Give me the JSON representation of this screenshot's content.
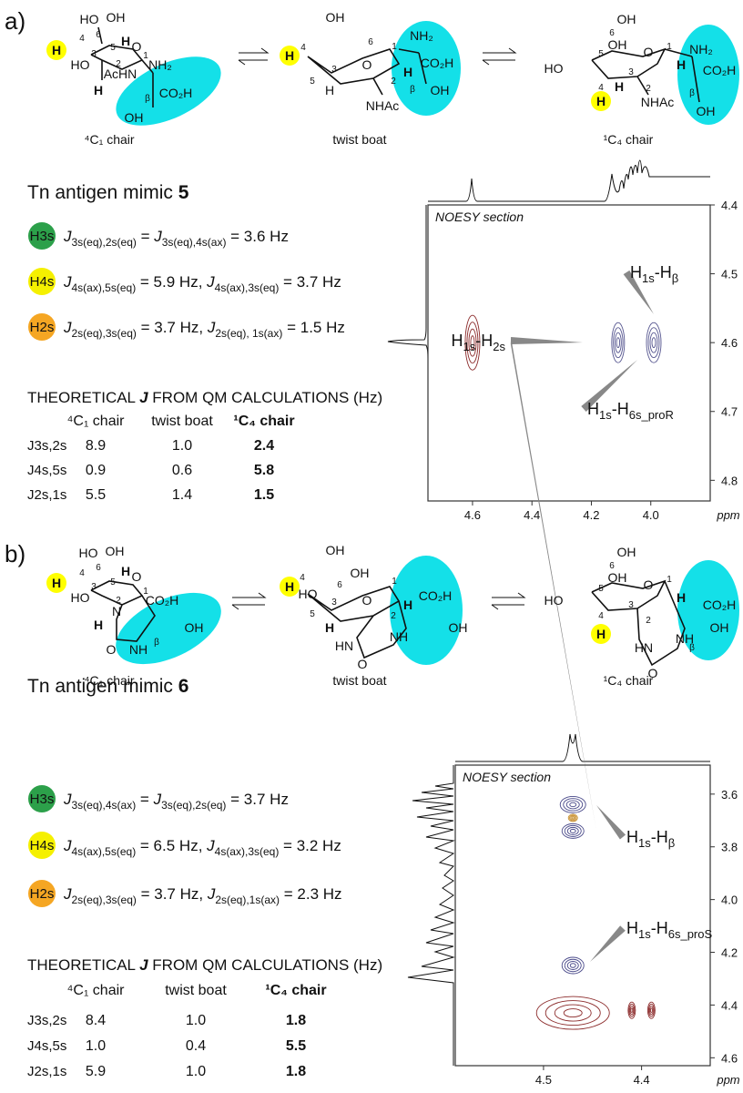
{
  "panels": [
    {
      "tag": "a)",
      "structures": [
        {
          "caption": "⁴C₁ chair",
          "labels": [
            "HO",
            "OH",
            "H",
            "4",
            "6",
            "5",
            "H",
            "O",
            "1",
            "HO",
            "3",
            "2",
            "AcHN",
            "NH₂",
            "H",
            "CO₂H",
            "β",
            "OH"
          ]
        },
        {
          "caption": "twist boat",
          "labels": [
            "OH",
            "4",
            "H",
            "6",
            "3",
            "5",
            "O",
            "1",
            "H",
            "2",
            "H",
            "NH₂",
            "CO₂H",
            "β",
            "OH",
            "NHAc"
          ]
        },
        {
          "caption": "¹C₄ chair",
          "labels": [
            "OH",
            "6",
            "OH",
            "5",
            "O",
            "1",
            "HO",
            "NH₂",
            "CO₂H",
            "H",
            "3",
            "4",
            "H",
            "2",
            "β",
            "H",
            "NHAc",
            "OH"
          ]
        }
      ],
      "title": {
        "text": "Tn antigen mimic ",
        "number": "5"
      },
      "couplings": [
        {
          "badge": [
            "H",
            "3s"
          ],
          "color": "#2ca04a",
          "equation": [
            [
              "J",
              "3s(eq),2s(eq)"
            ],
            " = ",
            [
              "J",
              "3s(eq),4s(ax)"
            ],
            " = 3.6 Hz"
          ]
        },
        {
          "badge": [
            "H",
            "4s"
          ],
          "color": "#f5f000",
          "equation": [
            [
              "J",
              "4s(ax),5s(eq)"
            ],
            " = 5.9 Hz, ",
            [
              "J",
              "4s(ax),3s(eq)"
            ],
            " = 3.7 Hz"
          ]
        },
        {
          "badge": [
            "H",
            "2s"
          ],
          "color": "#f5a623",
          "equation": [
            [
              "J",
              "2s(eq),3s(eq)"
            ],
            " = 3.7 Hz, ",
            [
              "J",
              "2s(eq), 1s(ax)"
            ],
            " = 1.5 Hz"
          ]
        }
      ],
      "table": {
        "heading": [
          "THEORETICAL ",
          "J",
          " FROM QM CALCULATIONS (Hz)"
        ],
        "columns": [
          "⁴C₁ chair",
          "twist boat",
          "¹C₄ chair"
        ],
        "rows": [
          {
            "label": [
              "J",
              "3s,2s"
            ],
            "cells": [
              "8.9",
              "1.0",
              "2.4"
            ]
          },
          {
            "label": [
              "J",
              "4s,5s"
            ],
            "cells": [
              "0.9",
              "0.6",
              "5.8"
            ]
          },
          {
            "label": [
              "J",
              "2s,1s"
            ],
            "cells": [
              "5.5",
              "1.4",
              "1.5"
            ]
          }
        ]
      },
      "noesy": {
        "title": "NOESY section",
        "xlabel": "ppm",
        "xlim": [
          4.75,
          3.8
        ],
        "ylim": [
          4.4,
          4.83
        ],
        "xticks": [
          4.6,
          4.4,
          4.2,
          {
            "value": 4,
            "label": "4.0"
          }
        ],
        "yticks": [
          4.4,
          4.5,
          4.6,
          4.7,
          4.8
        ],
        "peaks": [
          {
            "x": 4.6,
            "y": 4.6,
            "color": "#8b2a2a"
          },
          {
            "x": 4.11,
            "y": 4.6,
            "color": "#55558f"
          },
          {
            "x": 3.99,
            "y": 4.6,
            "color": "#55558f"
          }
        ],
        "annotations": [
          {
            "label": [
              [
                "H",
                "1s"
              ],
              "-",
              [
                "H",
                "2s"
              ]
            ]
          },
          {
            "label": [
              [
                "H",
                "1s"
              ],
              "-",
              [
                "H",
                "β"
              ]
            ]
          },
          {
            "label": [
              [
                "H",
                "1s"
              ],
              "-",
              [
                "H",
                "6s_proR"
              ]
            ]
          }
        ]
      }
    },
    {
      "tag": "b)",
      "structures": [
        {
          "caption": "⁴C₁ chair",
          "labels": [
            "HO",
            "OH",
            "H",
            "4",
            "6",
            "5",
            "H",
            "O",
            "1",
            "HO",
            "3",
            "2",
            "N",
            "CO₂H",
            "H",
            "OH",
            "O",
            "NH",
            "β"
          ]
        },
        {
          "caption": "twist boat",
          "labels": [
            "OH",
            "OH",
            "H",
            "4",
            "6",
            "HO",
            "3",
            "5",
            "O",
            "1",
            "2",
            "H",
            "H",
            "HN",
            "NH",
            "O",
            "CO₂H",
            "OH"
          ]
        },
        {
          "caption": "¹C₄ chair",
          "labels": [
            "OH",
            "6",
            "OH",
            "5",
            "O",
            "1",
            "HO",
            "4",
            "3",
            "2",
            "H",
            "H",
            "HN",
            "NH",
            "O",
            "CO₂H",
            "OH",
            "β"
          ]
        }
      ],
      "title": {
        "text": "Tn antigen mimic ",
        "number": "6"
      },
      "couplings": [
        {
          "badge": [
            "H",
            "3s"
          ],
          "color": "#2ca04a",
          "equation": [
            [
              "J",
              "3s(eq),4s(ax)"
            ],
            " = ",
            [
              "J",
              "3s(eq),2s(eq)"
            ],
            " = 3.7 Hz"
          ]
        },
        {
          "badge": [
            "H",
            "4s"
          ],
          "color": "#f5f000",
          "equation": [
            [
              "J",
              "4s(ax),5s(eq)"
            ],
            " = 6.5 Hz, ",
            [
              "J",
              "4s(ax),3s(eq)"
            ],
            " = 3.2 Hz"
          ]
        },
        {
          "badge": [
            "H",
            "2s"
          ],
          "color": "#f5a623",
          "equation": [
            [
              "J",
              "2s(eq),3s(eq)"
            ],
            " = 3.7 Hz, ",
            [
              "J",
              "2s(eq),1s(ax)"
            ],
            " = 2.3 Hz"
          ]
        }
      ],
      "table": {
        "heading": [
          "THEORETICAL ",
          "J",
          " FROM QM CALCULATIONS (Hz)"
        ],
        "columns": [
          "⁴C₁ chair",
          "twist boat",
          "¹C₄ chair"
        ],
        "rows": [
          {
            "label": [
              "J",
              "3s,2s"
            ],
            "cells": [
              "8.4",
              "1.0",
              "1.8"
            ]
          },
          {
            "label": [
              "J",
              "4s,5s"
            ],
            "cells": [
              "1.0",
              "0.4",
              "5.5"
            ]
          },
          {
            "label": [
              "J",
              "2s,1s"
            ],
            "cells": [
              "5.9",
              "1.0",
              "1.8"
            ]
          }
        ]
      },
      "noesy": {
        "title": "NOESY section",
        "xlabel": "ppm",
        "xlim": [
          4.59,
          4.33
        ],
        "ylim": [
          3.49,
          4.63
        ],
        "xticks": [
          4.5,
          4.4
        ],
        "yticks": [
          3.6,
          3.8,
          {
            "value": 4,
            "label": "4.0"
          },
          4.2,
          4.4,
          4.6
        ],
        "peaks": [
          {
            "x": 4.47,
            "y": 3.64,
            "color": "#4a4a8a"
          },
          {
            "x": 4.47,
            "y": 3.69,
            "color": "#c89030"
          },
          {
            "x": 4.47,
            "y": 3.74,
            "color": "#4a4a8a"
          },
          {
            "x": 4.47,
            "y": 4.25,
            "color": "#4a4a8a"
          },
          {
            "x": 4.47,
            "y": 4.43,
            "color": "#8b2a2a"
          },
          {
            "x": 4.41,
            "y": 4.42,
            "color": "#8b2a2a"
          },
          {
            "x": 4.39,
            "y": 4.42,
            "color": "#8b2a2a"
          }
        ],
        "annotations": [
          {
            "label": [
              [
                "H",
                "1s"
              ],
              "-",
              [
                "H",
                "β"
              ]
            ]
          },
          {
            "label": [
              [
                "H",
                "1s"
              ],
              "-",
              [
                "H",
                "6s_proS"
              ]
            ]
          }
        ]
      }
    }
  ]
}
